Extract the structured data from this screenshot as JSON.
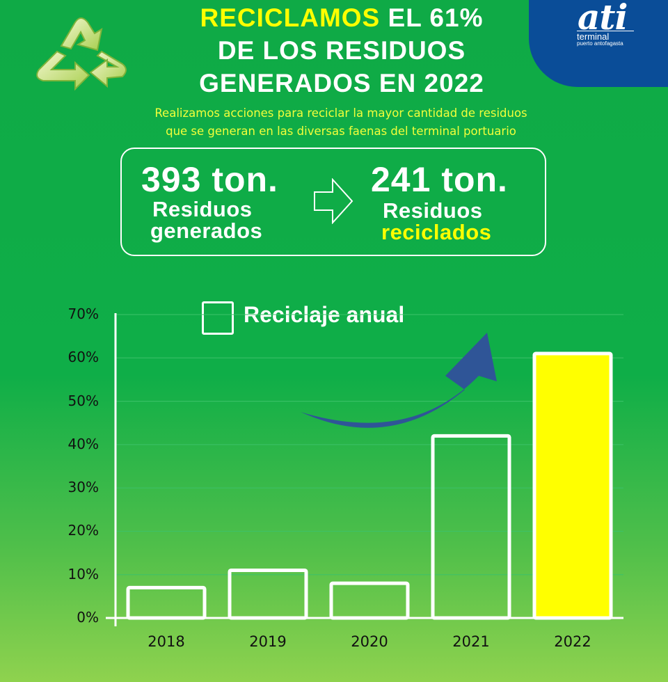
{
  "header": {
    "headline_highlight": "RECICLAMOS",
    "headline_rest_1": " EL 61%",
    "headline_line_2": "DE LOS RESIDUOS",
    "headline_line_3": "GENERADOS EN 2022",
    "subtitle_line_1": "Realizamos acciones para reciclar la mayor cantidad de residuos",
    "subtitle_line_2": "que se generan en las diversas faenas del terminal portuario"
  },
  "logo": {
    "word": "ati",
    "line_1": "terminal",
    "line_2": "puerto antofagasta"
  },
  "stats": {
    "generated_value": "393 ton.",
    "generated_label_1": "Residuos",
    "generated_label_2": "generados",
    "recycled_value": "241 ton.",
    "recycled_label_1": "Residuos",
    "recycled_label_2": "reciclados"
  },
  "icons": {
    "recycle": "recycle-icon",
    "arrow": "arrow-right-icon",
    "trend": "trend-arrow-icon"
  },
  "colors": {
    "background": "#0faa46",
    "highlight": "#ffff00",
    "logo_blue": "#0a4d98",
    "bar_outline": "#ffffff",
    "trend_arrow": "#2f5597"
  },
  "chart_data": {
    "type": "bar",
    "title": "",
    "legend": [
      "Reciclaje anual"
    ],
    "categories": [
      "2018",
      "2019",
      "2020",
      "2021",
      "2022"
    ],
    "values": [
      7,
      11,
      8,
      42,
      61
    ],
    "highlight_category": "2022",
    "ylim": [
      0,
      70
    ],
    "ytick_labels": [
      "0%",
      "10%",
      "20%",
      "30%",
      "40%",
      "50%",
      "60%",
      "70%"
    ],
    "xlabel": "",
    "ylabel": "",
    "grid": true
  }
}
